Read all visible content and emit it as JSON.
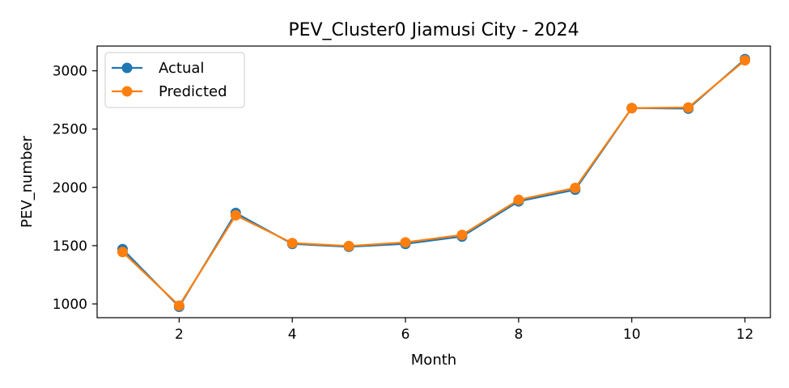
{
  "chart_data": {
    "type": "line",
    "title": "PEV_Cluster0 Jiamusi City - 2024",
    "xlabel": "Month",
    "ylabel": "PEV_number",
    "x": [
      1,
      2,
      3,
      4,
      5,
      6,
      7,
      8,
      9,
      10,
      11,
      12
    ],
    "xlim": [
      0.55,
      12.45
    ],
    "ylim": [
      882,
      3212
    ],
    "xticks": [
      2,
      4,
      6,
      8,
      10,
      12
    ],
    "yticks": [
      1000,
      1500,
      2000,
      2500,
      3000
    ],
    "grid": false,
    "legend_position": "top-left",
    "series": [
      {
        "name": "Actual",
        "color": "#1f77b4",
        "values": [
          1470,
          975,
          1780,
          1515,
          1490,
          1515,
          1578,
          1880,
          1980,
          2680,
          2675,
          3100
        ]
      },
      {
        "name": "Predicted",
        "color": "#ff7f0e",
        "values": [
          1445,
          985,
          1760,
          1522,
          1497,
          1528,
          1592,
          1893,
          1995,
          2680,
          2685,
          3090
        ]
      }
    ]
  }
}
